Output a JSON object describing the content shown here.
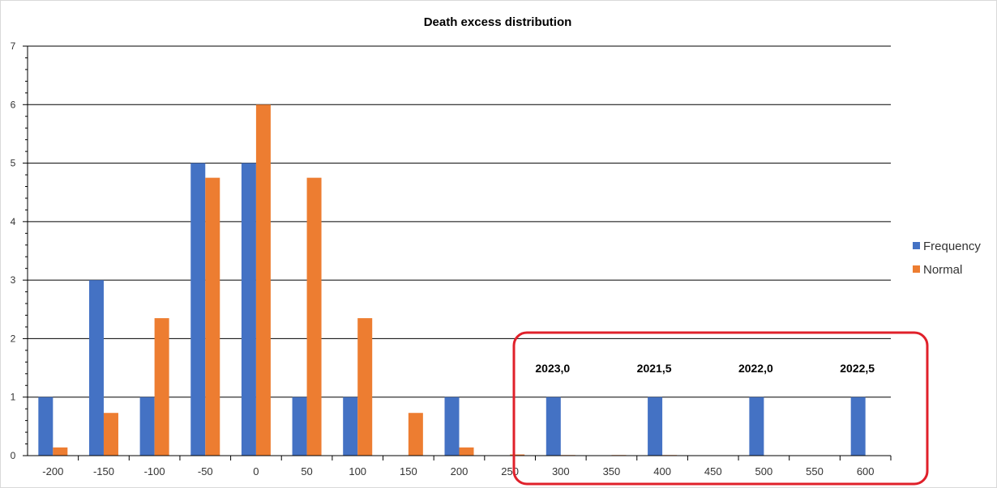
{
  "chart_data": {
    "type": "bar",
    "title": "Death excess distribution",
    "categories": [
      "-200",
      "-150",
      "-100",
      "-50",
      "0",
      "50",
      "100",
      "150",
      "200",
      "250",
      "300",
      "350",
      "400",
      "450",
      "500",
      "550",
      "600"
    ],
    "series": [
      {
        "name": "Frequency",
        "color": "#4472C4",
        "values": [
          1,
          3,
          1,
          5,
          5,
          1,
          1,
          0,
          1,
          0,
          1,
          0,
          1,
          0,
          1,
          0,
          1
        ]
      },
      {
        "name": "Normal",
        "color": "#ED7D31",
        "values": [
          0.14,
          0.73,
          2.35,
          4.75,
          6.0,
          4.75,
          2.35,
          0.73,
          0.14,
          0.02,
          0.01,
          0.01,
          0.01,
          0,
          0,
          0,
          0
        ]
      }
    ],
    "ylim": [
      0,
      7
    ],
    "yticks": [
      0,
      1,
      2,
      3,
      4,
      5,
      6,
      7
    ],
    "grid": true,
    "legend_position": "right",
    "annotations": [
      {
        "text": "2023,0",
        "category": "300"
      },
      {
        "text": "2021,5",
        "category": "400"
      },
      {
        "text": "2022,0",
        "category": "500"
      },
      {
        "text": "2022,5",
        "category": "600"
      }
    ],
    "highlight": {
      "shape": "rounded-rectangle",
      "color": "#E0202A",
      "from_category": "250",
      "to_category": "600"
    }
  }
}
